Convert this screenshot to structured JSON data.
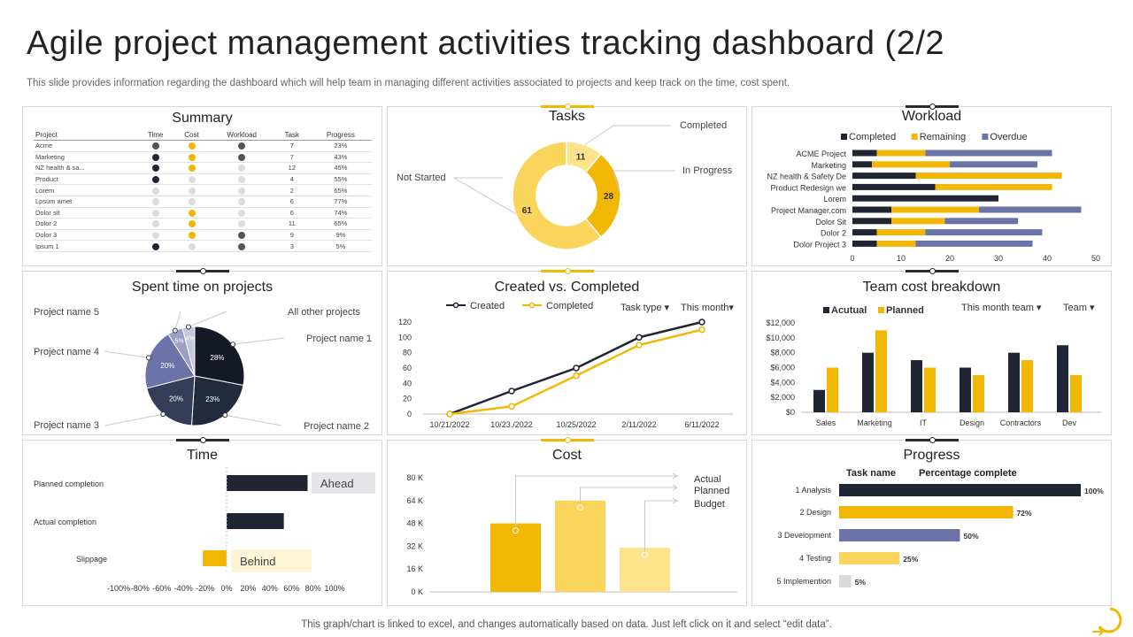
{
  "header": {
    "title": "Agile project management activities tracking dashboard (2/2",
    "subtitle": "This slide provides information regarding the dashboard which will help team in managing different activities associated to projects and keep track on the time, cost spent."
  },
  "footer": {
    "text": "This graph/chart is linked to excel,  and changes automatically based on data. Just left click on it and select “edit data”."
  },
  "colors": {
    "dark": "#1f2533",
    "yellow": "#f2b705",
    "light_yellow": "#fad55c",
    "pale_yellow": "#fde38c",
    "slate": "#6a74a8",
    "gray": "#d9d9d9"
  },
  "summary": {
    "title": "Summary",
    "columns": [
      "Project",
      "Time",
      "Cost",
      "Workload",
      "Task",
      "Progress"
    ],
    "rows": [
      {
        "project": "Acme",
        "time": "gray",
        "cost": "yellow",
        "workload": "gray",
        "task": "7",
        "progress": "23%"
      },
      {
        "project": "Marketing",
        "time": "dark",
        "cost": "yellow",
        "workload": "gray",
        "task": "7",
        "progress": "43%"
      },
      {
        "project": "NZ health & sa...",
        "time": "dark",
        "cost": "yellow",
        "workload": "lgray",
        "task": "12",
        "progress": "45%"
      },
      {
        "project": "Product",
        "time": "dark",
        "cost": "lgray",
        "workload": "lgray",
        "task": "4",
        "progress": "55%"
      },
      {
        "project": "Lorem",
        "time": "lgray",
        "cost": "lgray",
        "workload": "lgray",
        "task": "2",
        "progress": "65%"
      },
      {
        "project": "Lpsum amet",
        "time": "lgray",
        "cost": "lgray",
        "workload": "lgray",
        "task": "6",
        "progress": "77%"
      },
      {
        "project": "Dolor sit",
        "time": "lgray",
        "cost": "yellow",
        "workload": "lgray",
        "task": "6",
        "progress": "74%"
      },
      {
        "project": "Dolor 2",
        "time": "lgray",
        "cost": "yellow",
        "workload": "lgray",
        "task": "11",
        "progress": "65%"
      },
      {
        "project": "Dolor 3",
        "time": "lgray",
        "cost": "yellow",
        "workload": "gray",
        "task": "9",
        "progress": "9%"
      },
      {
        "project": "Ipsum 1",
        "time": "dark",
        "cost": "lgray",
        "workload": "gray",
        "task": "3",
        "progress": "5%"
      }
    ]
  },
  "chart_data": [
    {
      "id": "tasks",
      "type": "pie",
      "title": "Tasks",
      "labels": [
        "Completed",
        "In Progress",
        "Not Started"
      ],
      "values": [
        11,
        28,
        61
      ],
      "colors": [
        "#fde38c",
        "#f2b705",
        "#fad55c"
      ],
      "donut": true
    },
    {
      "id": "workload",
      "type": "bar",
      "orientation": "horizontal",
      "stacked": true,
      "title": "Workload",
      "categories": [
        "ACME Project",
        "Marketing",
        "NZ health & Safety De",
        "Product Redesign we",
        "Lorem",
        "Project Manager.com",
        "Dolor Sit",
        "Dolor 2",
        "Dolor Project 3"
      ],
      "series": [
        {
          "name": "Completed",
          "color": "#1f2533",
          "values": [
            5,
            4,
            13,
            17,
            30,
            8,
            8,
            5,
            5
          ]
        },
        {
          "name": "Remaining",
          "color": "#f2b705",
          "values": [
            10,
            16,
            30,
            24,
            0,
            18,
            11,
            10,
            8
          ]
        },
        {
          "name": "Overdue",
          "color": "#6a74a8",
          "values": [
            26,
            18,
            0,
            0,
            0,
            21,
            15,
            24,
            24
          ]
        }
      ],
      "xlim": [
        0,
        50
      ],
      "xticks": [
        0,
        10,
        20,
        30,
        40,
        50
      ],
      "legend": "top"
    },
    {
      "id": "spent",
      "type": "pie",
      "title": "Spent time on projects",
      "labels": [
        "Project name 1",
        "Project name 2",
        "Project name 3",
        "Project name 4",
        "Project name 5",
        "All other projects"
      ],
      "values": [
        28,
        23,
        20,
        20,
        5,
        4
      ],
      "value_labels": [
        "28%",
        "23%",
        "20%",
        "20%",
        "5%",
        "4%"
      ],
      "colors": [
        "#151925",
        "#232a3c",
        "#343c58",
        "#6a74a8",
        "#9aa0c4",
        "#c5c8dc"
      ]
    },
    {
      "id": "created",
      "type": "line",
      "title": "Created vs. Completed",
      "categories": [
        "10/21/2022",
        "10/23./2022",
        "10/25/2022",
        "2/11/2022",
        "6/11/2022"
      ],
      "series": [
        {
          "name": "Created",
          "color": "#1f2533",
          "values": [
            0,
            30,
            60,
            100,
            120
          ]
        },
        {
          "name": "Completed",
          "color": "#f2b705",
          "values": [
            0,
            10,
            50,
            90,
            110
          ]
        }
      ],
      "ylim": [
        0,
        120
      ],
      "yticks": [
        0,
        20,
        40,
        60,
        80,
        100,
        120
      ],
      "legend": "top-left",
      "filters": [
        "Task type",
        "This month"
      ]
    },
    {
      "id": "teamcost",
      "type": "bar",
      "title": "Team cost breakdown",
      "categories": [
        "Sales",
        "Marketing",
        "IT",
        "Design",
        "Contractors",
        "Dev"
      ],
      "series": [
        {
          "name": "Acutual",
          "color": "#1f2533",
          "values": [
            3000,
            8000,
            7000,
            6000,
            8000,
            9000
          ]
        },
        {
          "name": "Planned",
          "color": "#f2b705",
          "values": [
            6000,
            11000,
            6000,
            5000,
            7000,
            5000
          ]
        }
      ],
      "ylim": [
        0,
        12000
      ],
      "yticks": [
        "$0",
        "$2,000",
        "$4,000",
        "$6,000",
        "$8,000",
        "$10,000",
        "$12,000"
      ],
      "legend": "top-left",
      "filters": [
        "This month team",
        "Team"
      ]
    },
    {
      "id": "time",
      "type": "bar",
      "orientation": "horizontal",
      "title": "Time",
      "categories": [
        "Planned completion",
        "Actual completion",
        "Slippage"
      ],
      "values": [
        75,
        53,
        -22
      ],
      "colors": [
        "#1f2533",
        "#1f2533",
        "#f2b705"
      ],
      "annotations": [
        "Ahead",
        "Behind"
      ],
      "xlim": [
        -100,
        100
      ],
      "xticks": [
        "-100%",
        "-80%",
        "-60%",
        "-40%",
        "-20%",
        "0%",
        "20%",
        "40%",
        "60%",
        "80%",
        "100%"
      ]
    },
    {
      "id": "cost",
      "type": "bar",
      "title": "Cost",
      "categories": [
        "Actual",
        "Planned",
        "Budget"
      ],
      "values": [
        48000,
        64000,
        31000
      ],
      "colors": [
        "#f2b705",
        "#fad55c",
        "#fde38c"
      ],
      "ylim": [
        0,
        80000
      ],
      "yticks": [
        "0 K",
        "16 K",
        "32 K",
        "48 K",
        "64 K",
        "80 K"
      ]
    },
    {
      "id": "progress",
      "type": "bar",
      "orientation": "horizontal",
      "title": "Progress",
      "headers": [
        "Task name",
        "Percentage complete"
      ],
      "categories": [
        "1 Analysis",
        "2 Design",
        "3 Development",
        "4 Testing",
        "5 Implemention"
      ],
      "values": [
        100,
        72,
        50,
        25,
        5
      ],
      "value_labels": [
        "100%",
        "72%",
        "50%",
        "25%",
        "5%"
      ],
      "colors": [
        "#1f2533",
        "#f2b705",
        "#6a74a8",
        "#fad55c",
        "#d9d9d9"
      ],
      "xlim": [
        0,
        100
      ]
    }
  ]
}
